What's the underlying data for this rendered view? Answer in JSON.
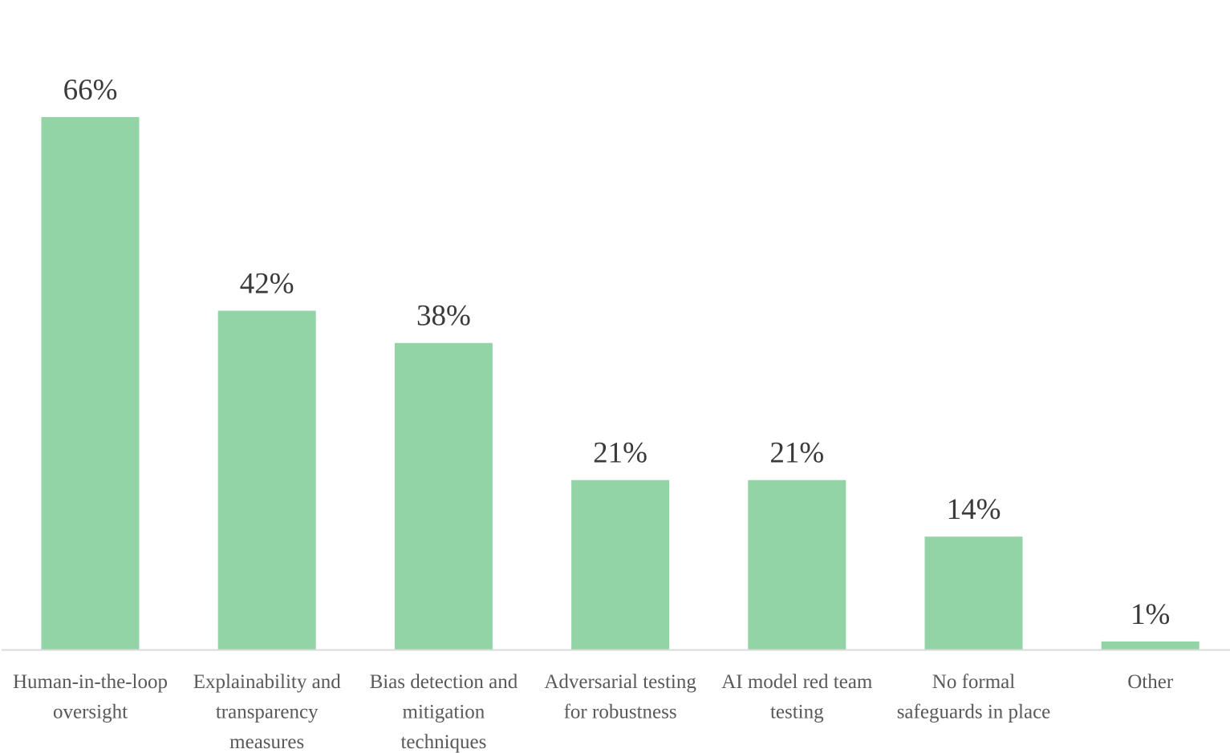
{
  "colors": {
    "bar": "#93d4a6",
    "axis": "#d9d9d9",
    "value_text": "#3a3a3a",
    "category_text": "#595959"
  },
  "chart_data": {
    "type": "bar",
    "title": "",
    "xlabel": "",
    "ylabel": "",
    "ylim": [
      0,
      66
    ],
    "grid": false,
    "legend": "none",
    "unit": "%",
    "categories": [
      [
        "Human-in-the-loop",
        "oversight"
      ],
      [
        "Explainability and",
        "transparency",
        "measures"
      ],
      [
        "Bias detection and",
        "mitigation",
        "techniques"
      ],
      [
        "Adversarial testing",
        "for robustness"
      ],
      [
        "AI model red team",
        "testing"
      ],
      [
        "No formal",
        "safeguards in place"
      ],
      [
        "Other"
      ]
    ],
    "values": [
      66,
      42,
      38,
      21,
      21,
      14,
      1
    ],
    "value_labels": [
      "66%",
      "42%",
      "38%",
      "21%",
      "21%",
      "14%",
      "1%"
    ]
  }
}
